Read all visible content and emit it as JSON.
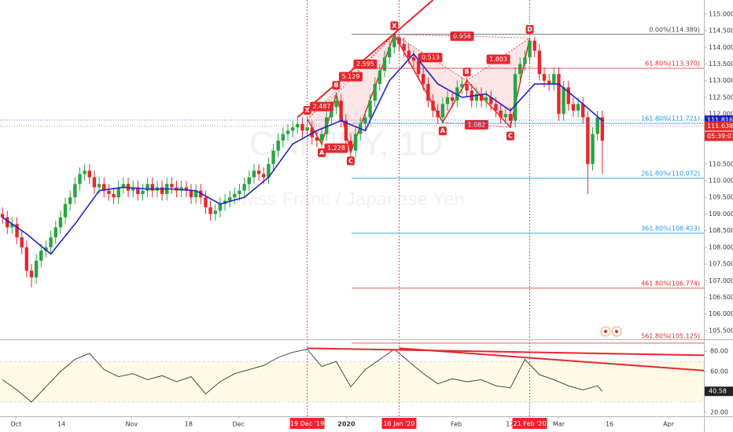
{
  "chart_data": {
    "type": "candlestick",
    "symbol_watermark": "CHFJPY, 1D",
    "description_watermark": "Swiss Franc / Japanese Yen",
    "up_color": "#26a541",
    "down_color": "#e8262b",
    "open": [
      109.0,
      108.9,
      108.6,
      108.7,
      108.3,
      108.0,
      107.3,
      107.1,
      107.6,
      107.9,
      108.0,
      108.3,
      108.6,
      108.9,
      109.3,
      109.5,
      109.9,
      110.2,
      110.3,
      110.1,
      109.8,
      109.9,
      109.7,
      109.6,
      109.5,
      109.8,
      109.9,
      109.7,
      109.8,
      109.6,
      109.7,
      109.9,
      109.7,
      109.8,
      109.6,
      109.9,
      109.8,
      109.7,
      109.8,
      109.7,
      109.5,
      109.7,
      109.5,
      109.2,
      109.0,
      109.1,
      109.3,
      109.4,
      109.5,
      109.6,
      109.7,
      109.9,
      110.1,
      110.3,
      110.2,
      110.1,
      110.5,
      110.9,
      111.2,
      111.4,
      111.5,
      111.6,
      111.7,
      111.5,
      111.6,
      111.3,
      111.2,
      111.4,
      111.9,
      112.2,
      112.4,
      111.8,
      111.2,
      110.9,
      111.4,
      111.7,
      111.9,
      112.4,
      112.9,
      113.3,
      113.7,
      114.0,
      114.3,
      114.1,
      113.9,
      113.7,
      113.6,
      113.2,
      112.9,
      112.4,
      112.1,
      111.9,
      112.3,
      112.5,
      112.4,
      112.8,
      112.9,
      112.7,
      112.4,
      112.6,
      112.4,
      112.5,
      112.3,
      112.1,
      111.9,
      112.0,
      111.8,
      113.2,
      113.5,
      113.7,
      114.2,
      113.9,
      113.2,
      113.0,
      112.9,
      113.2,
      112.0,
      112.8,
      112.3,
      112.1,
      112.3,
      111.9,
      110.5,
      111.4,
      111.9
    ],
    "high": [
      109.2,
      109.1,
      108.9,
      108.9,
      108.5,
      108.2,
      107.5,
      107.8,
      108.1,
      108.2,
      108.5,
      108.8,
      109.1,
      109.5,
      109.7,
      110.1,
      110.4,
      110.5,
      110.5,
      110.3,
      110.1,
      110.1,
      109.9,
      109.8,
      110.0,
      110.1,
      110.1,
      110.0,
      110.0,
      109.9,
      110.1,
      110.1,
      110.0,
      110.0,
      110.1,
      110.1,
      110.0,
      110.0,
      110.0,
      109.9,
      109.9,
      109.9,
      109.7,
      109.4,
      109.3,
      109.5,
      109.6,
      109.7,
      109.8,
      109.9,
      110.1,
      110.3,
      110.5,
      110.5,
      110.4,
      110.7,
      111.1,
      111.4,
      111.6,
      111.7,
      111.8,
      111.9,
      111.9,
      111.8,
      111.8,
      111.5,
      111.6,
      112.1,
      112.4,
      112.6,
      112.6,
      112.0,
      111.4,
      111.6,
      111.9,
      112.1,
      112.6,
      113.1,
      113.5,
      113.9,
      114.2,
      114.39,
      114.35,
      114.3,
      114.1,
      113.9,
      113.8,
      113.4,
      113.1,
      112.6,
      112.3,
      112.5,
      112.7,
      112.7,
      113.0,
      113.1,
      113.1,
      112.9,
      112.8,
      112.8,
      112.7,
      112.7,
      112.5,
      112.3,
      112.2,
      112.2,
      113.4,
      113.7,
      113.9,
      114.28,
      114.3,
      114.1,
      113.4,
      113.2,
      113.4,
      113.4,
      113.0,
      113.0,
      112.5,
      112.5,
      112.5,
      112.1,
      111.6,
      112.1,
      112.1
    ],
    "low": [
      108.7,
      108.4,
      108.4,
      108.1,
      107.8,
      107.1,
      106.8,
      106.9,
      107.4,
      107.7,
      107.8,
      108.1,
      108.4,
      108.7,
      109.1,
      109.3,
      109.7,
      110.0,
      109.9,
      109.6,
      109.6,
      109.5,
      109.4,
      109.3,
      109.3,
      109.6,
      109.5,
      109.5,
      109.4,
      109.4,
      109.5,
      109.5,
      109.5,
      109.4,
      109.4,
      109.6,
      109.5,
      109.5,
      109.5,
      109.3,
      109.3,
      109.3,
      109.0,
      108.8,
      108.8,
      108.9,
      109.1,
      109.2,
      109.3,
      109.4,
      109.5,
      109.7,
      109.9,
      110.0,
      109.9,
      109.9,
      110.3,
      110.7,
      111.0,
      111.2,
      111.3,
      111.4,
      111.3,
      111.3,
      111.1,
      111.0,
      111.0,
      111.2,
      111.7,
      112.0,
      111.6,
      111.0,
      110.7,
      110.7,
      111.2,
      111.5,
      111.7,
      112.2,
      112.7,
      113.1,
      113.5,
      113.8,
      113.9,
      113.7,
      113.5,
      113.4,
      113.0,
      112.7,
      112.2,
      111.9,
      111.7,
      111.7,
      112.1,
      112.2,
      112.2,
      112.6,
      112.5,
      112.2,
      112.2,
      112.2,
      112.2,
      112.1,
      111.9,
      111.7,
      111.7,
      111.6,
      111.6,
      113.0,
      113.3,
      113.5,
      113.7,
      113.0,
      112.8,
      112.7,
      112.7,
      111.8,
      111.8,
      112.1,
      111.9,
      111.9,
      111.7,
      109.6,
      110.3,
      111.2,
      110.2
    ],
    "close": [
      108.9,
      108.6,
      108.7,
      108.3,
      108.0,
      107.3,
      107.1,
      107.6,
      107.9,
      108.0,
      108.3,
      108.6,
      108.9,
      109.3,
      109.5,
      109.9,
      110.2,
      110.3,
      110.1,
      109.8,
      109.9,
      109.7,
      109.6,
      109.5,
      109.8,
      109.9,
      109.7,
      109.8,
      109.6,
      109.7,
      109.9,
      109.7,
      109.8,
      109.6,
      109.9,
      109.8,
      109.7,
      109.8,
      109.7,
      109.5,
      109.7,
      109.5,
      109.2,
      109.0,
      109.1,
      109.3,
      109.4,
      109.5,
      109.6,
      109.7,
      109.9,
      110.1,
      110.3,
      110.2,
      110.1,
      110.5,
      110.9,
      111.2,
      111.4,
      111.5,
      111.6,
      111.7,
      111.5,
      111.6,
      111.3,
      111.2,
      111.4,
      111.9,
      112.2,
      112.4,
      111.8,
      111.2,
      110.9,
      111.4,
      111.7,
      111.9,
      112.4,
      112.9,
      113.3,
      113.7,
      114.0,
      114.3,
      114.1,
      113.9,
      113.7,
      113.6,
      113.2,
      112.9,
      112.4,
      112.1,
      111.9,
      112.3,
      112.5,
      112.4,
      112.8,
      112.9,
      112.7,
      112.4,
      112.6,
      112.4,
      112.5,
      112.3,
      112.1,
      111.9,
      112.0,
      111.8,
      113.2,
      113.5,
      113.7,
      114.2,
      113.9,
      113.2,
      113.0,
      112.9,
      113.2,
      112.0,
      112.8,
      112.3,
      112.1,
      112.3,
      111.9,
      110.5,
      111.4,
      111.9,
      111.2
    ],
    "xlim": [
      -0.5,
      145
    ],
    "xticks": [
      {
        "value": 2.8,
        "label": "Oct"
      },
      {
        "value": 12.2,
        "label": "14"
      },
      {
        "value": 26.7,
        "label": "Nov"
      },
      {
        "value": 38.5,
        "label": "18"
      },
      {
        "value": 48.8,
        "label": "Dec"
      },
      {
        "value": 71.1,
        "label": "2020"
      },
      {
        "value": 93.8,
        "label": "Feb"
      },
      {
        "value": 104.9,
        "label": "17"
      },
      {
        "value": 115,
        "label": "Mar"
      },
      {
        "value": 125.5,
        "label": "16"
      },
      {
        "value": 137.7,
        "label": "Apr"
      }
    ],
    "ylim": [
      105.24,
      115.42
    ],
    "yticks": [
      {
        "value": 115,
        "label": "115.000"
      },
      {
        "value": 114.5,
        "label": "114.500"
      },
      {
        "value": 114,
        "label": "114.000"
      },
      {
        "value": 113.5,
        "label": "113.500"
      },
      {
        "value": 113,
        "label": "113.000"
      },
      {
        "value": 112.5,
        "label": "112.500"
      },
      {
        "value": 112,
        "label": "112.000"
      },
      {
        "value": 110.5,
        "label": "110.500"
      },
      {
        "value": 110,
        "label": "110.000"
      },
      {
        "value": 109.5,
        "label": "109.500"
      },
      {
        "value": 109,
        "label": "109.000"
      },
      {
        "value": 108.5,
        "label": "108.500"
      },
      {
        "value": 108,
        "label": "108.000"
      },
      {
        "value": 107.5,
        "label": "107.500"
      },
      {
        "value": 107,
        "label": "107.000"
      },
      {
        "value": 106.5,
        "label": "106.500"
      },
      {
        "value": 106,
        "label": "106.000"
      },
      {
        "value": 105.5,
        "label": "105.500"
      }
    ],
    "moving_average": {
      "color": "#1e22c8",
      "x": [
        0,
        5,
        10,
        15,
        20,
        25,
        30,
        35,
        40,
        45,
        50,
        55,
        60,
        65,
        70,
        75,
        80,
        85,
        90,
        95,
        100,
        105,
        110,
        115,
        120,
        124
      ],
      "values": [
        108.9,
        108.4,
        107.8,
        108.7,
        109.7,
        109.8,
        109.75,
        109.75,
        109.7,
        109.3,
        109.5,
        110.1,
        111.1,
        111.5,
        111.8,
        111.5,
        113.0,
        113.8,
        112.9,
        112.5,
        112.6,
        112.1,
        112.9,
        112.9,
        112.3,
        111.8
      ]
    },
    "trendline": {
      "color": "#e8262b",
      "x": [
        61,
        89
      ],
      "values": [
        111.9,
        115.42
      ]
    },
    "fib_levels": [
      {
        "value": 114.389,
        "label": "0.00%(114.389)",
        "color": "#444444"
      },
      {
        "value": 113.37,
        "label": "61.80%(113.370)",
        "color": "#e8262b"
      },
      {
        "value": 111.721,
        "label": "161.80%(111.721)",
        "color": "#2196f3"
      },
      {
        "value": 110.072,
        "label": "261.80%(110.072)",
        "color": "#2196f3"
      },
      {
        "value": 108.423,
        "label": "361.80%(108.423)",
        "color": "#2196f3"
      },
      {
        "value": 106.774,
        "label": "461.80%(106.774)",
        "color": "#e8262b"
      },
      {
        "value": 105.125,
        "label": "561.80%(105.125)",
        "color": "#e8262b"
      }
    ],
    "patterns": [
      {
        "points": [
          {
            "label": "X",
            "x": 63,
            "price": 111.85
          },
          {
            "label": "A",
            "x": 66,
            "price": 111.1
          },
          {
            "label": "B",
            "x": 69,
            "price": 112.6
          },
          {
            "label": "C",
            "x": 72,
            "price": 110.85
          },
          {
            "label": null,
            "x": 81,
            "price": 114.389
          }
        ],
        "ratios": [
          "2.487",
          "1.228",
          "2.595",
          "5.129"
        ]
      },
      {
        "points": [
          {
            "label": "X",
            "x": 81,
            "price": 114.389
          },
          {
            "label": "A",
            "x": 91,
            "price": 111.75
          },
          {
            "label": "B",
            "x": 96,
            "price": 113.0
          },
          {
            "label": "C",
            "x": 105,
            "price": 111.6
          },
          {
            "label": "D",
            "x": 109,
            "price": 114.28
          }
        ],
        "ratios": [
          "0.513",
          "1.082",
          "1.803",
          "0.958"
        ]
      }
    ],
    "marker_lines": [
      {
        "x": 63,
        "label": "19 Dec '19"
      },
      {
        "x": 82,
        "label": "16 Jan '20"
      },
      {
        "x": 109,
        "label": "21 Feb '20"
      }
    ],
    "price_labels": [
      {
        "value": 111.816,
        "color": "#1e22c8"
      },
      {
        "value": 111.638,
        "color": "#e8262b"
      }
    ],
    "countdown": "05:39:01",
    "rsi": {
      "color": "#333333",
      "ylim": [
        16,
        91
      ],
      "yticks": [
        {
          "value": 80,
          "label": "80.00"
        },
        {
          "value": 60,
          "label": "60.00"
        },
        {
          "value": 20,
          "label": "20.00"
        }
      ],
      "band": [
        30,
        70
      ],
      "x": [
        0,
        3,
        6,
        9,
        12,
        15,
        18,
        21,
        24,
        27,
        30,
        33,
        36,
        39,
        42,
        45,
        48,
        51,
        54,
        57,
        60,
        63,
        66,
        69,
        72,
        75,
        78,
        81,
        84,
        87,
        90,
        93,
        96,
        99,
        102,
        105,
        108,
        111,
        114,
        117,
        120,
        123,
        124
      ],
      "values": [
        52,
        42,
        30,
        45,
        60,
        72,
        78,
        62,
        55,
        58,
        52,
        56,
        50,
        55,
        38,
        50,
        58,
        62,
        66,
        74,
        79,
        82,
        65,
        70,
        45,
        62,
        72,
        82,
        70,
        58,
        48,
        53,
        50,
        52,
        46,
        44,
        72,
        57,
        52,
        46,
        42,
        46,
        40.58
      ],
      "trendlines": [
        {
          "x": [
            63,
            145
          ],
          "values": [
            83,
            76
          ]
        },
        {
          "x": [
            82,
            145
          ],
          "values": [
            83,
            61
          ]
        }
      ],
      "trend_color": "#e8262b"
    }
  }
}
